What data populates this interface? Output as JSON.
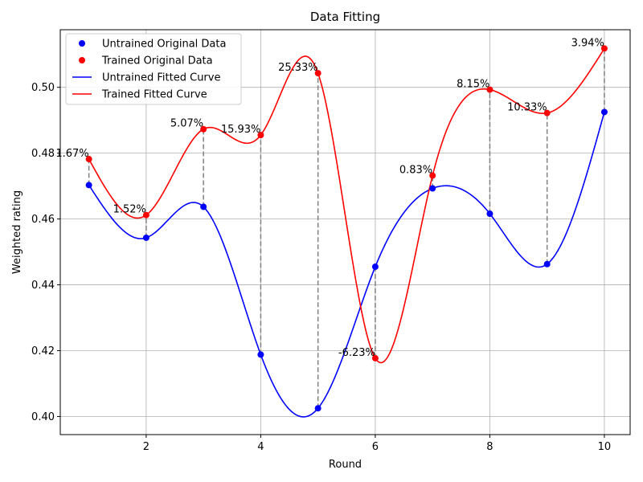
{
  "chart_data": {
    "type": "line",
    "title": "Data Fitting",
    "xlabel": "Round",
    "ylabel": "Weighted rating",
    "xlim": [
      0.5,
      10.45
    ],
    "ylim": [
      0.3945,
      0.5175
    ],
    "xticks": [
      2,
      4,
      6,
      8,
      10
    ],
    "yticks": [
      0.4,
      0.42,
      0.44,
      0.46,
      0.48,
      0.5
    ],
    "ytick_labels": [
      "0.40",
      "0.42",
      "0.44",
      "0.46",
      "0.48",
      "0.50"
    ],
    "grid": true,
    "legend_position": "upper-left",
    "x": [
      1,
      2,
      3,
      4,
      5,
      6,
      7,
      8,
      9,
      10
    ],
    "series": [
      {
        "name": "Untrained Original Data",
        "kind": "points",
        "color": "#0000ff",
        "values": [
          0.4703,
          0.4543,
          0.4637,
          0.4188,
          0.4025,
          0.4455,
          0.4693,
          0.4616,
          0.4463,
          0.4925
        ]
      },
      {
        "name": "Trained Original Data",
        "kind": "points",
        "color": "#ff0000",
        "values": [
          0.4782,
          0.4612,
          0.4873,
          0.4855,
          0.5043,
          0.4177,
          0.4732,
          0.4993,
          0.4922,
          0.5118
        ]
      },
      {
        "name": "Untrained Fitted Curve",
        "kind": "curve",
        "color": "#0000ff",
        "fits": "Untrained Original Data"
      },
      {
        "name": "Trained Fitted Curve",
        "kind": "curve",
        "color": "#ff0000",
        "fits": "Trained Original Data"
      }
    ],
    "annotations": [
      "1.67%",
      "1.52%",
      "5.07%",
      "15.93%",
      "25.33%",
      "-6.23%",
      "0.83%",
      "8.15%",
      "10.33%",
      "3.94%"
    ],
    "connector_color": "#808080"
  }
}
